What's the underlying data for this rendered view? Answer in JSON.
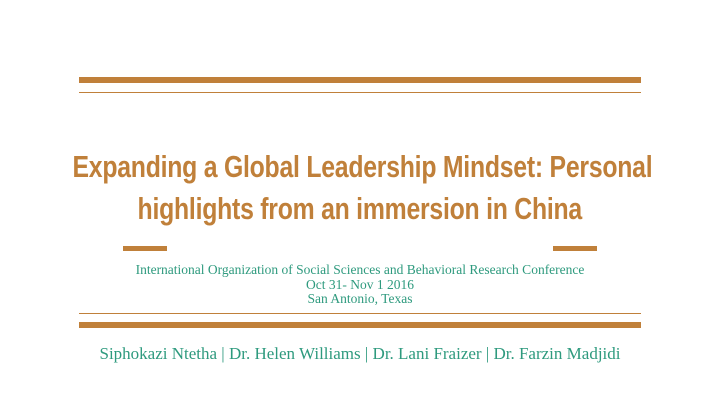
{
  "slide": {
    "title_lines": [
      "Expanding a Global Leadership Mindset: Personal",
      "highlights from an immersion in China"
    ],
    "conference": "International Organization of Social Sciences and Behavioral Research Conference",
    "dates": "Oct 31- Nov 1 2016",
    "location": "San Antonio, Texas",
    "authors": "Siphokazi Ntetha | Dr. Helen Williams | Dr. Lani Fraizer | Dr. Farzin Madjidi"
  },
  "colors": {
    "accent": "#c0803a",
    "text_secondary": "#2e9a7e"
  }
}
